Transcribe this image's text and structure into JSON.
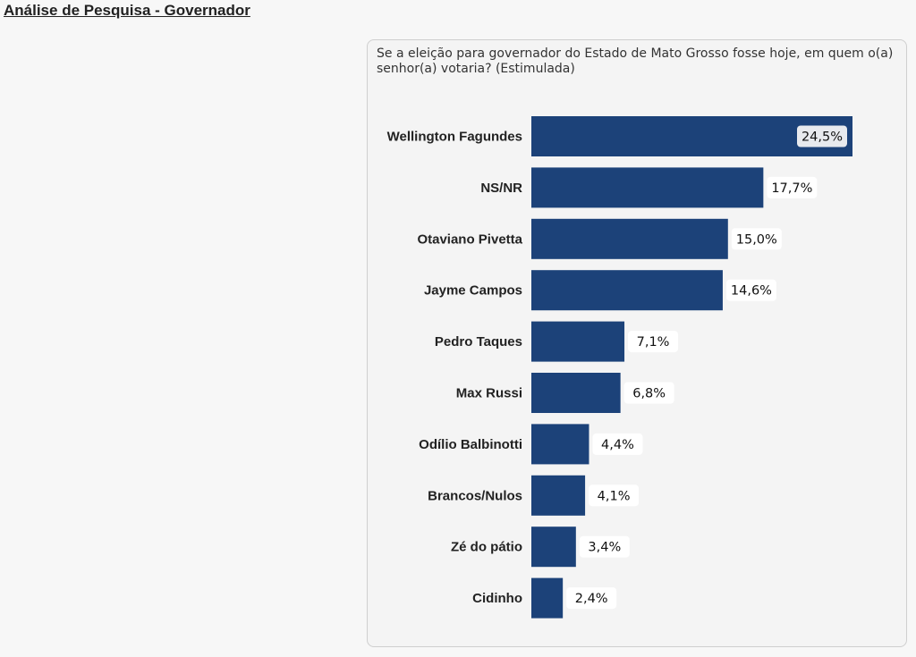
{
  "page": {
    "title": "Análise de Pesquisa - Governador"
  },
  "chart_data": {
    "type": "bar",
    "orientation": "horizontal",
    "title": "Se a eleição para governador do Estado de Mato Grosso fosse hoje, em quem o(a) senhor(a) votaria? (Estimulada)",
    "categories": [
      "Wellington Fagundes",
      "NS/NR",
      "Otaviano Pivetta",
      "Jayme Campos",
      "Pedro Taques",
      "Max Russi",
      "Odílio Balbinotti",
      "Brancos/Nulos",
      "Zé do pátio",
      "Cidinho"
    ],
    "values": [
      24.5,
      17.7,
      15.0,
      14.6,
      7.1,
      6.8,
      4.4,
      4.1,
      3.4,
      2.4
    ],
    "value_labels": [
      "24,5%",
      "17,7%",
      "15,0%",
      "14,6%",
      "7,1%",
      "6,8%",
      "4,4%",
      "4,1%",
      "3,4%",
      "2,4%"
    ],
    "xlim": [
      0,
      24.5
    ],
    "grid": false,
    "bar_color": "#1c4279"
  }
}
